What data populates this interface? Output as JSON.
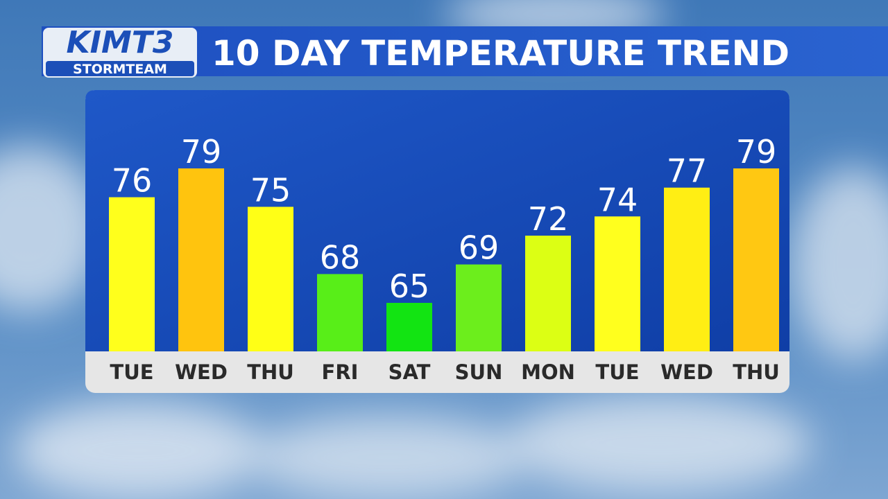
{
  "logo": {
    "name": "KIMT3",
    "team": "STORMTEAM"
  },
  "chart_data": {
    "type": "bar",
    "title": "10 DAY TEMPERATURE TREND",
    "categories": [
      "TUE",
      "WED",
      "THU",
      "FRI",
      "SAT",
      "SUN",
      "MON",
      "TUE",
      "WED",
      "THU"
    ],
    "values": [
      76,
      79,
      75,
      68,
      65,
      69,
      72,
      74,
      77,
      79
    ],
    "colors": [
      "#ffff1c",
      "#ffc40e",
      "#ffff16",
      "#58ee18",
      "#12e412",
      "#6cee1c",
      "#dcff14",
      "#ffff1e",
      "#ffee14",
      "#ffc812"
    ]
  }
}
